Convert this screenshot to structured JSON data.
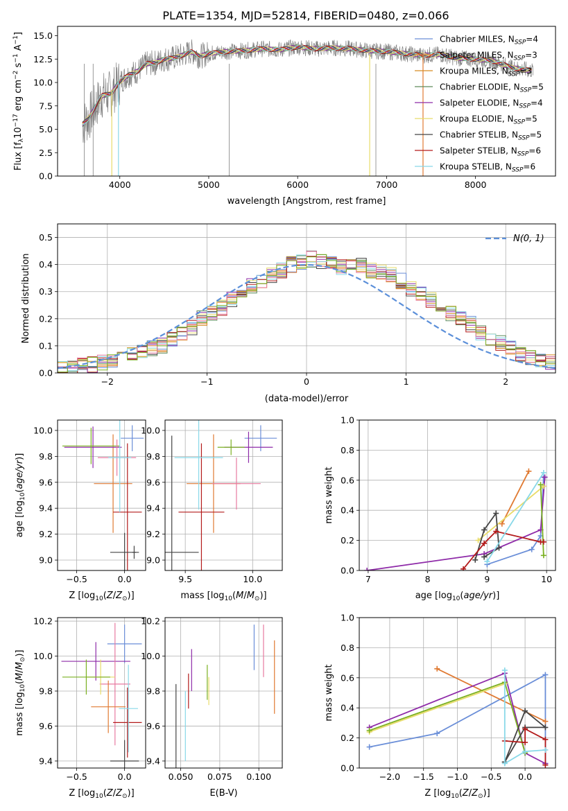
{
  "figure_title": "PLATE=1354, MJD=52814, FIBERID=0480, z=0.066",
  "colors": [
    "#6a8ed8",
    "#e07a32",
    "#d68a22",
    "#5d8a5a",
    "#8e2aa8",
    "#e8dc6a",
    "#444444",
    "#b31a1a",
    "#88d8e8",
    "#e87aa0",
    "#7ab020",
    "#ffffff"
  ],
  "chart_data": [
    {
      "id": "spectrum",
      "type": "line",
      "title": "PLATE=1354, MJD=52814, FIBERID=0480, z=0.066",
      "xlabel": "wavelength [Angstrom, rest frame]",
      "ylabel": "Flux [f_λ10^-17 erg cm^-2 s^-1 A^-1]",
      "xlim": [
        3300,
        8900
      ],
      "ylim": [
        0,
        16
      ],
      "xticks": [
        "4000",
        "5000",
        "6000",
        "7000",
        "8000"
      ],
      "yticks": [
        "0.0",
        "2.5",
        "5.0",
        "7.5",
        "10.0",
        "12.5",
        "15.0"
      ],
      "grid": false,
      "legend_position": "upper-right",
      "legend": [
        {
          "label": "Chabrier MILES, N",
          "sub": "SSP",
          "tail": "=4",
          "color": "#6a8ed8"
        },
        {
          "label": "Salpeter MILES, N",
          "sub": "SSP",
          "tail": "=3",
          "color": "#e07a32"
        },
        {
          "label": "Kroupa MILES, N",
          "sub": "SSP",
          "tail": "=3",
          "color": "#d68a22"
        },
        {
          "label": "Chabrier ELODIE, N",
          "sub": "SSP",
          "tail": "=5",
          "color": "#5d8a5a"
        },
        {
          "label": "Salpeter ELODIE, N",
          "sub": "SSP",
          "tail": "=4",
          "color": "#8e2aa8"
        },
        {
          "label": "Kroupa ELODIE, N",
          "sub": "SSP",
          "tail": "=5",
          "color": "#e8dc6a"
        },
        {
          "label": "Chabrier STELIB, N",
          "sub": "SSP",
          "tail": "=5",
          "color": "#444444"
        },
        {
          "label": "Salpeter STELIB, N",
          "sub": "SSP",
          "tail": "=6",
          "color": "#b31a1a"
        },
        {
          "label": "Kroupa STELIB, N",
          "sub": "SSP",
          "tail": "=6",
          "color": "#88d8e8"
        }
      ],
      "data_curve": {
        "x": [
          3580,
          3650,
          3700,
          3800,
          3900,
          4000,
          4100,
          4200,
          4300,
          4400,
          4500,
          4600,
          4700,
          4800,
          4900,
          5000,
          5200,
          5400,
          5600,
          5800,
          6000,
          6200,
          6400,
          6600,
          6800,
          7000,
          7200,
          7400,
          7600,
          7800,
          8000,
          8200,
          8400,
          8600
        ],
        "y": [
          5.5,
          6.2,
          7.0,
          8.6,
          8.8,
          10.1,
          10.8,
          11.2,
          12.0,
          12.1,
          12.5,
          12.6,
          12.9,
          13.3,
          12.8,
          13.1,
          13.3,
          13.4,
          13.6,
          13.5,
          13.8,
          13.6,
          13.7,
          13.6,
          13.4,
          13.3,
          13.1,
          12.9,
          13.0,
          12.6,
          12.5,
          12.3,
          11.6,
          11.3
        ]
      }
    },
    {
      "id": "residuals",
      "type": "bar",
      "xlabel": "(data-model)/error",
      "ylabel": "Normed distribution",
      "xlim": [
        -2.5,
        2.5
      ],
      "ylim": [
        0,
        0.55
      ],
      "xticks": [
        "−2",
        "−1",
        "0",
        "1",
        "2"
      ],
      "yticks": [
        "0.0",
        "0.1",
        "0.2",
        "0.3",
        "0.4",
        "0.5"
      ],
      "grid": true,
      "legend": "N(0, 1)",
      "bin_width": 0.1,
      "bin_start": -2.5,
      "series_values": [
        0.02,
        0.02,
        0.03,
        0.03,
        0.04,
        0.05,
        0.06,
        0.07,
        0.08,
        0.09,
        0.1,
        0.12,
        0.14,
        0.17,
        0.2,
        0.22,
        0.24,
        0.27,
        0.29,
        0.32,
        0.34,
        0.36,
        0.38,
        0.4,
        0.41,
        0.42,
        0.41,
        0.4,
        0.39,
        0.39,
        0.4,
        0.38,
        0.37,
        0.36,
        0.34,
        0.31,
        0.29,
        0.27,
        0.25,
        0.22,
        0.2,
        0.18,
        0.15,
        0.13,
        0.11,
        0.09,
        0.07,
        0.06,
        0.05,
        0.04
      ]
    },
    {
      "id": "age-vs-Z",
      "type": "scatter",
      "xlabel": "Z [log10(Z/Z⊙)]",
      "ylabel": "age  [log10(age/yr)]",
      "xlim": [
        -0.7,
        0.22
      ],
      "ylim": [
        8.92,
        10.08
      ],
      "xticks": [
        "−0.5",
        "0.0"
      ],
      "yticks": [
        "9.0",
        "9.2",
        "9.4",
        "9.6",
        "9.8",
        "10.0"
      ],
      "points": [
        {
          "x": 0.08,
          "y": 9.94,
          "xerr": 0.12,
          "yerr": 0.1,
          "color": "#6a8ed8"
        },
        {
          "x": -0.12,
          "y": 9.59,
          "xerr": 0.2,
          "yerr": 0.38,
          "color": "#e07a32"
        },
        {
          "x": -0.33,
          "y": 9.87,
          "xerr": 0.3,
          "yerr": 0.16,
          "color": "#8e2aa8"
        },
        {
          "x": -0.35,
          "y": 9.88,
          "xerr": 0.3,
          "yerr": 0.14,
          "color": "#7ab020"
        },
        {
          "x": -0.08,
          "y": 9.79,
          "xerr": 0.2,
          "yerr": 0.14,
          "color": "#e87aa0"
        },
        {
          "x": 0.03,
          "y": 9.37,
          "xerr": 0.15,
          "yerr": 0.53,
          "color": "#b31a1a"
        },
        {
          "x": -0.05,
          "y": 9.79,
          "xerr": 0.12,
          "yerr": 0.42,
          "color": "#88d8e8"
        },
        {
          "x": 0.0,
          "y": 9.06,
          "xerr": 0.15,
          "yerr": 0.15,
          "color": "#444444"
        },
        {
          "x": 0.1,
          "y": 9.06,
          "xerr": 0.02,
          "yerr": 0.05,
          "color": "#444444"
        }
      ]
    },
    {
      "id": "age-vs-mass",
      "type": "scatter",
      "xlabel": "mass [log10(M/M⊙)]",
      "ylabel": "",
      "xlim": [
        9.35,
        10.22
      ],
      "ylim": [
        8.92,
        10.08
      ],
      "xticks": [
        "9.5",
        "10.0"
      ],
      "yticks": [
        "9.0",
        "9.2",
        "9.4",
        "9.6",
        "9.8",
        "10.0"
      ],
      "points": [
        {
          "x": 10.06,
          "y": 9.94,
          "xerr": 0.12,
          "yerr": 0.1,
          "color": "#6a8ed8"
        },
        {
          "x": 9.71,
          "y": 9.59,
          "xerr": 0.2,
          "yerr": 0.38,
          "color": "#e07a32"
        },
        {
          "x": 9.97,
          "y": 9.87,
          "xerr": 0.18,
          "yerr": 0.12,
          "color": "#8e2aa8"
        },
        {
          "x": 9.88,
          "y": 9.59,
          "xerr": 0.18,
          "yerr": 0.2,
          "color": "#e87aa0"
        },
        {
          "x": 9.84,
          "y": 9.87,
          "xerr": 0.1,
          "yerr": 0.06,
          "color": "#7ab020"
        },
        {
          "x": 9.62,
          "y": 9.37,
          "xerr": 0.17,
          "yerr": 0.53,
          "color": "#b31a1a"
        },
        {
          "x": 9.6,
          "y": 9.79,
          "xerr": 0.18,
          "yerr": 0.4,
          "color": "#88d8e8"
        },
        {
          "x": 9.4,
          "y": 9.06,
          "xerr": 0.2,
          "yerr": 0.9,
          "color": "#444444"
        }
      ]
    },
    {
      "id": "mass-weight-vs-age",
      "type": "line",
      "xlabel": "age  [log10(age/yr)]",
      "ylabel": "mass weight",
      "xlim": [
        6.85,
        10.15
      ],
      "ylim": [
        0,
        1.0
      ],
      "xticks": [
        "7",
        "8",
        "9",
        "10"
      ],
      "yticks": [
        "0.0",
        "0.2",
        "0.4",
        "0.6",
        "0.8",
        "1.0"
      ],
      "grid": true,
      "series": [
        {
          "color": "#6a8ed8",
          "x": [
            9.0,
            9.75,
            9.9,
            9.95
          ],
          "y": [
            0.04,
            0.14,
            0.23,
            0.62
          ]
        },
        {
          "color": "#e07a32",
          "x": [
            9.25,
            9.7
          ],
          "y": [
            0.31,
            0.66
          ]
        },
        {
          "color": "#8e2aa8",
          "x": [
            6.98,
            8.95,
            9.9,
            9.97
          ],
          "y": [
            0.0,
            0.11,
            0.27,
            0.62
          ]
        },
        {
          "color": "#e8dc6a",
          "x": [
            8.85,
            9.95
          ],
          "y": [
            0.2,
            0.56
          ]
        },
        {
          "color": "#7ab020",
          "x": [
            9.95,
            9.9
          ],
          "y": [
            0.1,
            0.57
          ]
        },
        {
          "color": "#444444",
          "x": [
            8.8,
            8.95,
            9.15,
            9.2,
            8.95
          ],
          "y": [
            0.07,
            0.27,
            0.38,
            0.15,
            0.09
          ]
        },
        {
          "color": "#b31a1a",
          "x": [
            8.6,
            8.95,
            9.15,
            9.9,
            9.95
          ],
          "y": [
            0.01,
            0.18,
            0.26,
            0.19,
            0.19
          ]
        },
        {
          "color": "#88d8e8",
          "x": [
            9.0,
            9.95
          ],
          "y": [
            0.06,
            0.65
          ]
        }
      ]
    },
    {
      "id": "mass-vs-Z",
      "type": "scatter",
      "xlabel": "Z [log10(Z/Z⊙)]",
      "ylabel": "mass [log10(M/M⊙)]",
      "xlim": [
        -0.7,
        0.22
      ],
      "ylim": [
        9.36,
        10.22
      ],
      "xticks": [
        "−0.5",
        "0.0"
      ],
      "yticks": [
        "9.4",
        "9.6",
        "9.8",
        "10.0",
        "10.2"
      ],
      "points": [
        {
          "x": 0.0,
          "y": 10.07,
          "xerr": 0.18,
          "yerr": 0.11,
          "color": "#6a8ed8"
        },
        {
          "x": -0.3,
          "y": 9.97,
          "xerr": 0.36,
          "yerr": 0.11,
          "color": "#8e2aa8"
        },
        {
          "x": -0.1,
          "y": 9.84,
          "xerr": 0.16,
          "yerr": 0.35,
          "color": "#e87aa0"
        },
        {
          "x": -0.25,
          "y": 9.88,
          "xerr": 0.15,
          "yerr": 0.1,
          "color": "#e8dc6a"
        },
        {
          "x": -0.4,
          "y": 9.88,
          "xerr": 0.25,
          "yerr": 0.1,
          "color": "#7ab020"
        },
        {
          "x": -0.17,
          "y": 9.71,
          "xerr": 0.18,
          "yerr": 0.15,
          "color": "#e07a32"
        },
        {
          "x": 0.03,
          "y": 9.62,
          "xerr": 0.15,
          "yerr": 0.2,
          "color": "#b31a1a"
        },
        {
          "x": 0.04,
          "y": 9.7,
          "xerr": 0.1,
          "yerr": 0.25,
          "color": "#88d8e8"
        },
        {
          "x": 0.0,
          "y": 9.4,
          "xerr": 0.15,
          "yerr": 0.12,
          "color": "#444444"
        }
      ]
    },
    {
      "id": "mass-vs-ebv",
      "type": "scatter",
      "xlabel": "E(B-V)",
      "ylabel": "",
      "xlim": [
        0.04,
        0.115
      ],
      "ylim": [
        9.36,
        10.22
      ],
      "xticks": [
        "0.050",
        "0.075",
        "0.100"
      ],
      "yticks": [
        "9.4",
        "9.6",
        "9.8",
        "10.0",
        "10.2"
      ],
      "points": [
        {
          "x": 0.097,
          "y": 10.05,
          "yerr": 0.13,
          "color": "#6a8ed8"
        },
        {
          "x": 0.11,
          "y": 9.88,
          "yerr": 0.21,
          "color": "#e07a32"
        },
        {
          "x": 0.103,
          "y": 10.03,
          "yerr": 0.15,
          "color": "#e87aa0"
        },
        {
          "x": 0.057,
          "y": 9.92,
          "yerr": 0.12,
          "color": "#8e2aa8"
        },
        {
          "x": 0.067,
          "y": 9.85,
          "yerr": 0.1,
          "color": "#7ab020"
        },
        {
          "x": 0.068,
          "y": 9.8,
          "yerr": 0.08,
          "color": "#e8dc6a"
        },
        {
          "x": 0.055,
          "y": 9.8,
          "yerr": 0.1,
          "color": "#b31a1a"
        },
        {
          "x": 0.053,
          "y": 9.6,
          "yerr": 0.2,
          "color": "#88d8e8"
        },
        {
          "x": 0.047,
          "y": 9.6,
          "yerr": 0.24,
          "color": "#444444"
        }
      ]
    },
    {
      "id": "mass-weight-vs-Z",
      "type": "line",
      "xlabel": "Z [log10(Z/Z⊙)]",
      "ylabel": "mass weight",
      "xlim": [
        -2.45,
        0.45
      ],
      "ylim": [
        0,
        1.0
      ],
      "xticks": [
        "−2.0",
        "−1.5",
        "−1.0",
        "−0.5",
        "0.0"
      ],
      "yticks": [
        "0.0",
        "0.2",
        "0.4",
        "0.6",
        "0.8",
        "1.0"
      ],
      "grid": true,
      "series": [
        {
          "color": "#6a8ed8",
          "x": [
            -2.3,
            -1.3,
            0.3,
            0.3
          ],
          "y": [
            0.14,
            0.23,
            0.62,
            0.03
          ]
        },
        {
          "color": "#e07a32",
          "x": [
            -1.3,
            0.3
          ],
          "y": [
            0.66,
            0.31
          ]
        },
        {
          "color": "#8e2aa8",
          "x": [
            -2.3,
            -0.3,
            0.0,
            0.3
          ],
          "y": [
            0.27,
            0.63,
            0.1,
            0.03
          ]
        },
        {
          "color": "#e8dc6a",
          "x": [
            -2.3,
            -0.3
          ],
          "y": [
            0.24,
            0.56
          ]
        },
        {
          "color": "#7ab020",
          "x": [
            -2.3,
            -0.3,
            0.0
          ],
          "y": [
            0.25,
            0.57,
            0.1
          ]
        },
        {
          "color": "#444444",
          "x": [
            -0.3,
            0.0,
            0.3,
            0.0,
            -0.3
          ],
          "y": [
            0.04,
            0.38,
            0.27,
            0.27,
            0.04
          ]
        },
        {
          "color": "#b31a1a",
          "x": [
            -0.3,
            0.0,
            0.0,
            0.3,
            0.3
          ],
          "y": [
            0.18,
            0.17,
            0.26,
            0.19,
            0.02
          ]
        },
        {
          "color": "#88d8e8",
          "x": [
            -0.3,
            -0.3,
            0.0,
            0.3
          ],
          "y": [
            0.65,
            0.03,
            0.11,
            0.12
          ]
        }
      ]
    }
  ]
}
